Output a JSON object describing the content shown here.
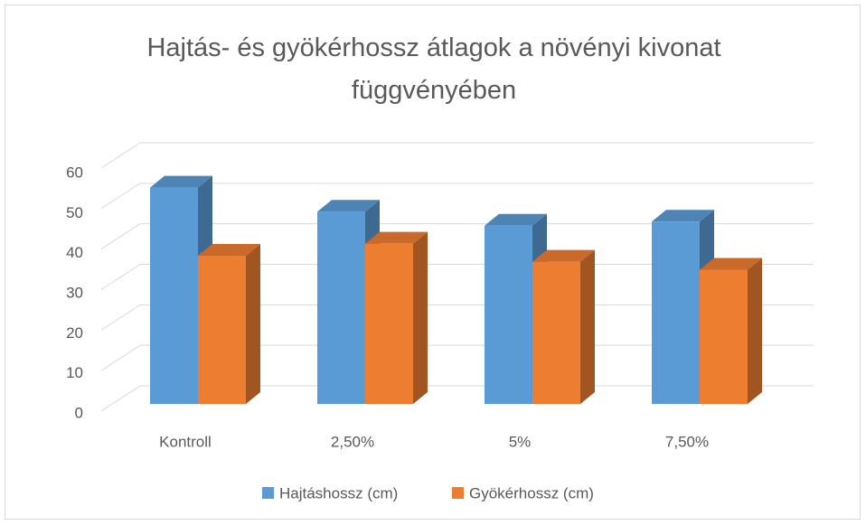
{
  "chart_data": {
    "type": "bar3d",
    "title": "Hajtás- és gyökérhossz átlagok a növényi kivonat függvényében",
    "categories": [
      "Kontroll",
      "2,50%",
      "5%",
      "7,50%"
    ],
    "series": [
      {
        "name": "Hajtáshossz (cm)",
        "color": "#5b9bd5",
        "values": [
          54,
          48,
          44.5,
          45.5
        ]
      },
      {
        "name": "Gyökérhossz (cm)",
        "color": "#ed7d31",
        "values": [
          37,
          40,
          35.5,
          33.5
        ]
      }
    ],
    "ylim": [
      0,
      60
    ],
    "yticks": [
      0,
      10,
      20,
      30,
      40,
      50,
      60
    ],
    "grid": true,
    "legend": "bottom"
  }
}
